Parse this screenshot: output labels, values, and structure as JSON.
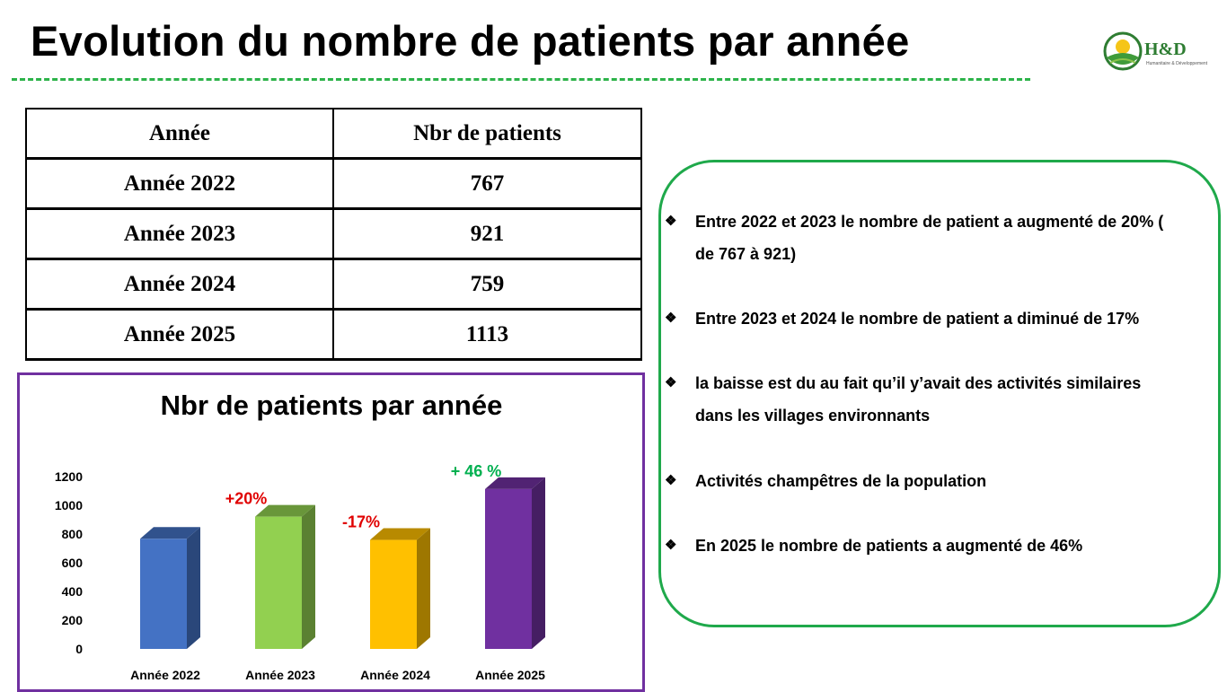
{
  "title": "Evolution du nombre de patients par année",
  "logo": {
    "text": "H&D",
    "subtitle": "Humanitaire & Développement"
  },
  "table": {
    "headers": [
      "Année",
      "Nbr de patients"
    ],
    "rows": [
      [
        "Année 2022",
        "767"
      ],
      [
        "Année 2023",
        "921"
      ],
      [
        "Année 2024",
        "759"
      ],
      [
        "Année 2025",
        "1113"
      ]
    ]
  },
  "notes": [
    "Entre 2022 et 2023 le nombre de patient a augmenté de 20% ( de 767 à  921)",
    "Entre 2023 et 2024 le nombre de patient a diminué de 17%",
    " la baisse est du au fait qu’il y’avait des activités similaires dans les villages environnants",
    "Activités champêtres de la population",
    "En 2025 le nombre de patients a augmenté de 46%"
  ],
  "colors": {
    "title_rule": "#2db34a",
    "chart_border": "#7030a0",
    "note_border": "#1fa94b",
    "increase_label": "#00b050",
    "decrease_label": "#e00000"
  },
  "chart_data": {
    "type": "bar",
    "title": "Nbr de patients par année",
    "xlabel": "",
    "ylabel": "",
    "categories": [
      "Année 2022",
      "Année 2023",
      "Année 2024",
      "Année 2025"
    ],
    "values": [
      767,
      921,
      759,
      1113
    ],
    "colors": [
      "#4472c4",
      "#92d050",
      "#ffc000",
      "#7030a0"
    ],
    "ylim": [
      0,
      1200
    ],
    "yticks": [
      "0",
      "200",
      "400",
      "600",
      "800",
      "1000",
      "1200"
    ],
    "grid": false,
    "annotations": [
      {
        "category": "Année 2023",
        "text": "+20%",
        "color": "#e00000"
      },
      {
        "category": "Année 2024",
        "text": "-17%",
        "color": "#e00000"
      },
      {
        "category": "Année 2025",
        "text": "+ 46 %",
        "color": "#00b050"
      }
    ]
  }
}
